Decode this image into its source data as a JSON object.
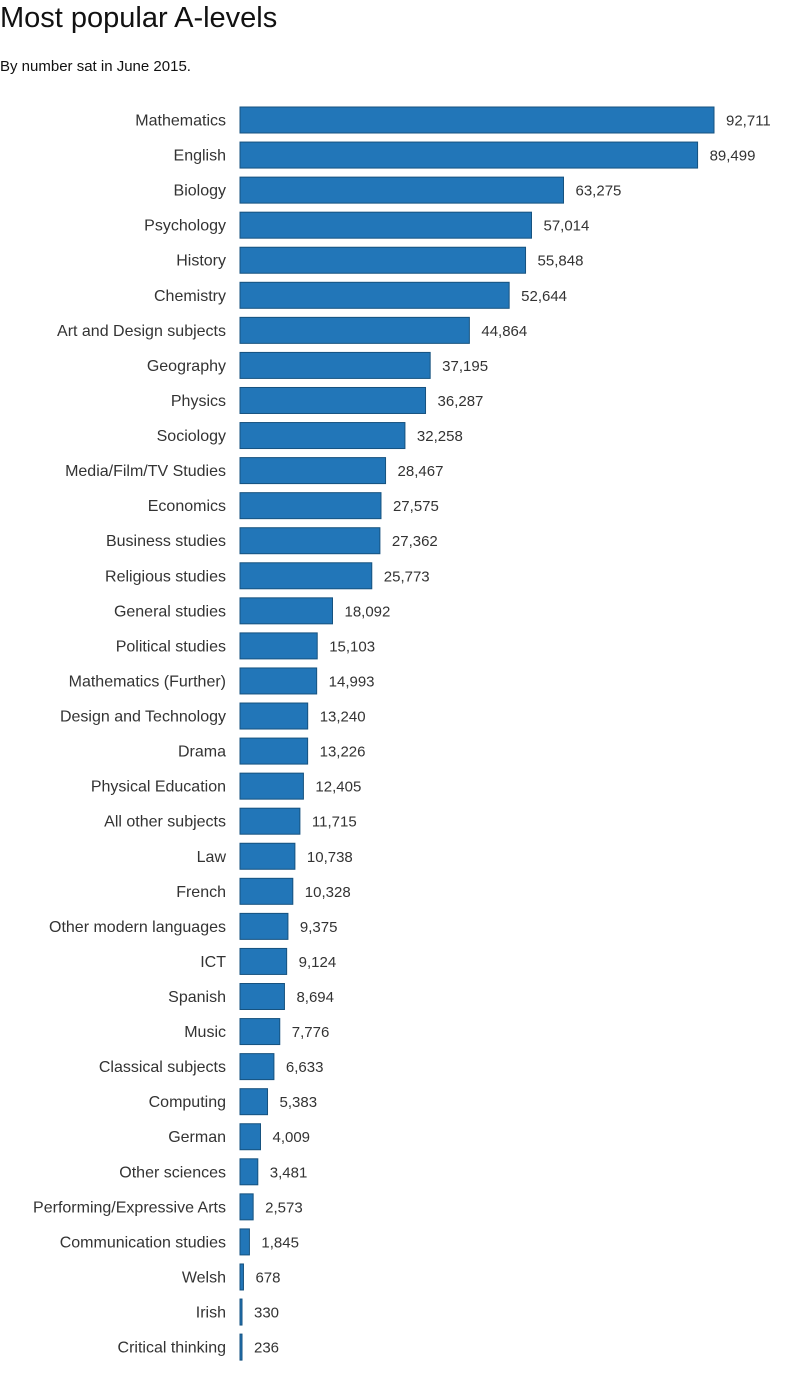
{
  "chart_data": {
    "type": "bar",
    "orientation": "horizontal",
    "title": "Most popular A-levels",
    "subtitle": "By number sat in June 2015.",
    "bar_color": "#2276b8",
    "bar_stroke": "#16527f",
    "grid": false,
    "categories": [
      "Mathematics",
      "English",
      "Biology",
      "Psychology",
      "History",
      "Chemistry",
      "Art and Design subjects",
      "Geography",
      "Physics",
      "Sociology",
      "Media/Film/TV Studies",
      "Economics",
      "Business studies",
      "Religious studies",
      "General studies",
      "Political studies",
      "Mathematics (Further)",
      "Design and Technology",
      "Drama",
      "Physical Education",
      "All other subjects",
      "Law",
      "French",
      "Other modern languages",
      "ICT",
      "Spanish",
      "Music",
      "Classical subjects",
      "Computing",
      "German",
      "Other sciences",
      "Performing/Expressive Arts",
      "Communication studies",
      "Welsh",
      "Irish",
      "Critical thinking"
    ],
    "values": [
      92711,
      89499,
      63275,
      57014,
      55848,
      52644,
      44864,
      37195,
      36287,
      32258,
      28467,
      27575,
      27362,
      25773,
      18092,
      15103,
      14993,
      13240,
      13226,
      12405,
      11715,
      10738,
      10328,
      9375,
      9124,
      8694,
      7776,
      6633,
      5383,
      4009,
      3481,
      2573,
      1845,
      678,
      330,
      236
    ],
    "value_labels": [
      "92,711",
      "89,499",
      "63,275",
      "57,014",
      "55,848",
      "52,644",
      "44,864",
      "37,195",
      "36,287",
      "32,258",
      "28,467",
      "27,575",
      "27,362",
      "25,773",
      "18,092",
      "15,103",
      "14,993",
      "13,240",
      "13,226",
      "12,405",
      "11,715",
      "10,738",
      "10,328",
      "9,375",
      "9,124",
      "8,694",
      "7,776",
      "6,633",
      "5,383",
      "4,009",
      "3,481",
      "2,573",
      "1,845",
      "678",
      "330",
      "236"
    ]
  }
}
